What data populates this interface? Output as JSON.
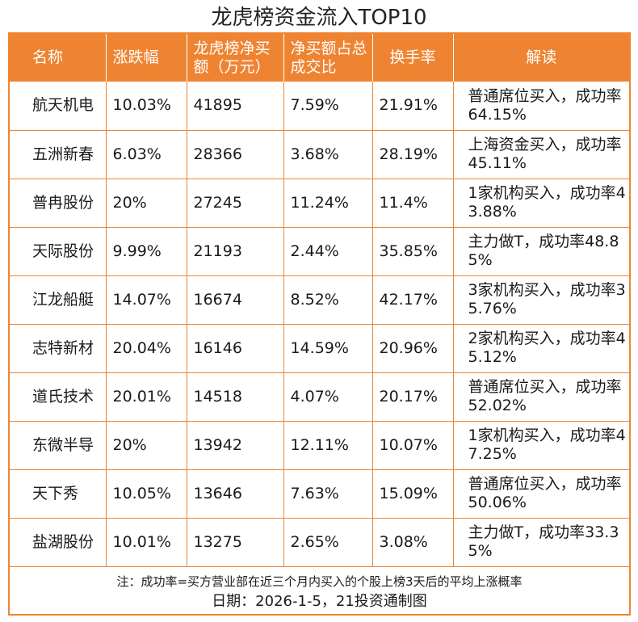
{
  "title": "龙虎榜资金流入TOP10",
  "columns": {
    "name": "名称",
    "change": "涨跌幅",
    "net_buy": "龙虎榜净买额（万元）",
    "ratio": "净买额占总成交比",
    "turnover": "换手率",
    "interp": "解读"
  },
  "rows": [
    {
      "name": "航天机电",
      "change": "10.03%",
      "net_buy": "41895",
      "ratio": "7.59%",
      "turnover": "21.91%",
      "interp": "普通席位买入，成功率64.15%"
    },
    {
      "name": "五洲新春",
      "change": "6.03%",
      "net_buy": "28366",
      "ratio": "3.68%",
      "turnover": "28.19%",
      "interp": "上海资金买入，成功率45.11%"
    },
    {
      "name": "普冉股份",
      "change": "20%",
      "net_buy": "27245",
      "ratio": "11.24%",
      "turnover": "11.4%",
      "interp": "1家机构买入，成功率43.88%"
    },
    {
      "name": "天际股份",
      "change": "9.99%",
      "net_buy": "21193",
      "ratio": "2.44%",
      "turnover": "35.85%",
      "interp": "主力做T，成功率48.85%"
    },
    {
      "name": "江龙船艇",
      "change": "14.07%",
      "net_buy": "16674",
      "ratio": "8.52%",
      "turnover": "42.17%",
      "interp": "3家机构买入，成功率35.76%"
    },
    {
      "name": "志特新材",
      "change": "20.04%",
      "net_buy": "16146",
      "ratio": "14.59%",
      "turnover": "20.96%",
      "interp": "2家机构买入，成功率45.12%"
    },
    {
      "name": "道氏技术",
      "change": "20.01%",
      "net_buy": "14518",
      "ratio": "4.07%",
      "turnover": "20.17%",
      "interp": "普通席位买入，成功率52.02%"
    },
    {
      "name": "东微半导",
      "change": "20%",
      "net_buy": "13942",
      "ratio": "12.11%",
      "turnover": "10.07%",
      "interp": "1家机构买入，成功率47.25%"
    },
    {
      "name": "天下秀",
      "change": "10.05%",
      "net_buy": "13646",
      "ratio": "7.63%",
      "turnover": "15.09%",
      "interp": "普通席位买入，成功率50.06%"
    },
    {
      "name": "盐湖股份",
      "change": "10.01%",
      "net_buy": "13275",
      "ratio": "2.65%",
      "turnover": "3.08%",
      "interp": "主力做T，成功率33.35%"
    }
  ],
  "note": "注：成功率=买方营业部在近三个月内买入的个股上榜3天后的平均上涨概率",
  "date_line": "日期：2026-1-5，21投资通制图",
  "colors": {
    "header_bg": "#ee8432",
    "header_text": "#ffffff",
    "grid_line": "#ee8432"
  }
}
